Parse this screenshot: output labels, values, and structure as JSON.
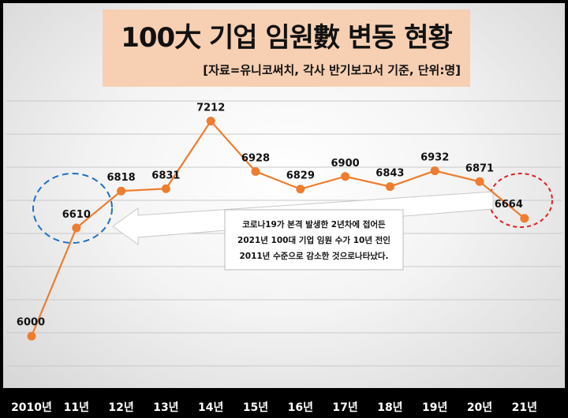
{
  "header": {
    "title": "100大 기업 임원數 변동 현황",
    "subtitle": "[자료=유니코써치, 각사 반기보고서 기준, 단위:명]"
  },
  "annotation": {
    "lines": [
      "코로나19가 본격 발생한 2년차에 접어든",
      "2021년 100대 기업 임원 수가 10년 전인",
      "2011년 수준으로 감소한 것으로나타났다."
    ]
  },
  "chart_data": {
    "type": "line",
    "title": "100大 기업 임원數 변동 현황",
    "categories": [
      "2010년",
      "11년",
      "12년",
      "13년",
      "14년",
      "15년",
      "16년",
      "17년",
      "18년",
      "19년",
      "20년",
      "21년"
    ],
    "series": [
      {
        "values": [
          6000,
          6610,
          6818,
          6831,
          7212,
          6928,
          6829,
          6900,
          6843,
          6932,
          6871,
          6664
        ]
      }
    ],
    "data_labels": [
      "6000",
      "6610",
      "6818",
      "6831",
      "7212",
      "6928",
      "6829",
      "6900",
      "6843",
      "6932",
      "6871",
      "6664"
    ],
    "ylim": [
      5850,
      7450
    ],
    "grid": true,
    "highlight_categories": [
      "11년",
      "21년"
    ],
    "colors": {
      "line": "#ee7d2f",
      "marker": "#ee7d2f",
      "highlight_2011": "#1f6fc4",
      "highlight_2021": "#e02020",
      "arrow": "#ffffff",
      "title_bg": "#f7cfb2"
    }
  }
}
